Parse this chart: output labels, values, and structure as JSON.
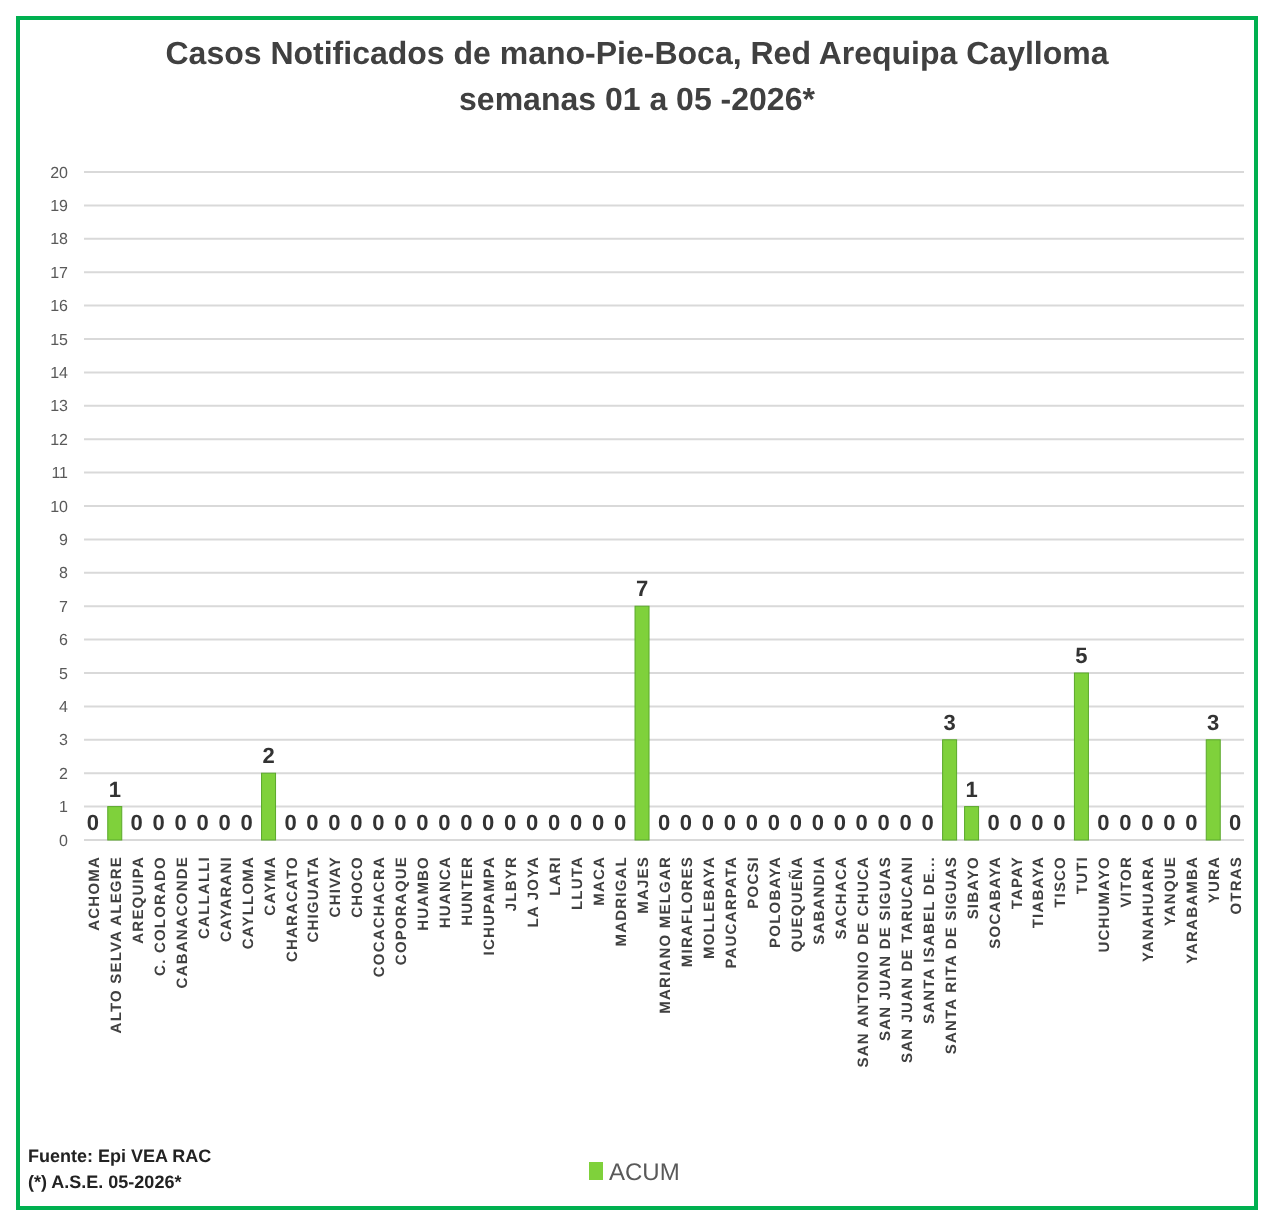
{
  "chart_data": {
    "type": "bar",
    "title": "Casos Notificados de mano-Pie-Boca, Red Arequipa Caylloma",
    "subtitle": "semanas 01 a 05 -2026*",
    "categories": [
      "ACHOMA",
      "ALTO SELVA ALEGRE",
      "AREQUIPA",
      "C. COLORADO",
      "CABANACONDE",
      "CALLALLI",
      "CAYARANI",
      "CAYLLOMA",
      "CAYMA",
      "CHARACATO",
      "CHIGUATA",
      "CHIVAY",
      "CHOCO",
      "COCACHACRA",
      "COPORAQUE",
      "HUAMBO",
      "HUANCA",
      "HUNTER",
      "ICHUPAMPA",
      "JLBYR",
      "LA JOYA",
      "LARI",
      "LLUTA",
      "MACA",
      "MADRIGAL",
      "MAJES",
      "MARIANO MELGAR",
      "MIRAFLORES",
      "MOLLEBAYA",
      "PAUCARPATA",
      "POCSI",
      "POLOBAYA",
      "QUEQUEÑA",
      "SABANDIA",
      "SACHACA",
      "SAN ANTONIO DE CHUCA",
      "SAN JUAN DE SIGUAS",
      "SAN JUAN DE TARUCANI",
      "SANTA ISABEL DE...",
      "SANTA RITA DE SIGUAS",
      "SIBAYO",
      "SOCABAYA",
      "TAPAY",
      "TIABAYA",
      "TISCO",
      "TUTI",
      "UCHUMAYO",
      "VITOR",
      "YANAHUARA",
      "YANQUE",
      "YARABAMBA",
      "YURA",
      "OTRAS"
    ],
    "series": [
      {
        "name": "ACUM",
        "color": "#7fd13b",
        "values": [
          0,
          1,
          0,
          0,
          0,
          0,
          0,
          0,
          2,
          0,
          0,
          0,
          0,
          0,
          0,
          0,
          0,
          0,
          0,
          0,
          0,
          0,
          0,
          0,
          0,
          7,
          0,
          0,
          0,
          0,
          0,
          0,
          0,
          0,
          0,
          0,
          0,
          0,
          0,
          3,
          1,
          0,
          0,
          0,
          0,
          5,
          0,
          0,
          0,
          0,
          0,
          3,
          0
        ]
      }
    ],
    "ylim": [
      0,
      20
    ],
    "yticks": [
      0,
      1,
      2,
      3,
      4,
      5,
      6,
      7,
      8,
      9,
      10,
      11,
      12,
      13,
      14,
      15,
      16,
      17,
      18,
      19,
      20
    ],
    "grid": "y",
    "data_labels": true,
    "legend": "bottom",
    "annotations": [
      "Fuente: Epi VEA RAC",
      "(*) A.S.E. 05-2026*"
    ]
  }
}
